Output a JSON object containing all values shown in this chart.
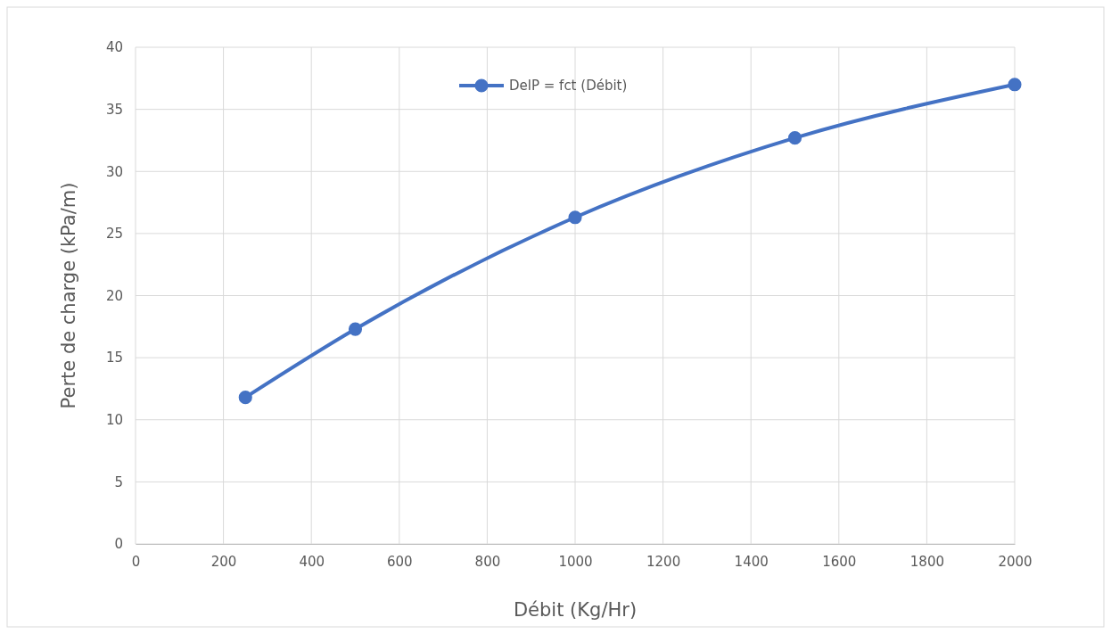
{
  "chart_data": {
    "type": "line",
    "xlabel": "Débit (Kg/Hr)",
    "ylabel": "Perte de charge (kPa/m)",
    "x": [
      250,
      500,
      1000,
      1500,
      2000
    ],
    "series": [
      {
        "name": "DelP = fct (Débit)",
        "color": "#4472c4",
        "values": [
          11.8,
          17.3,
          26.3,
          32.7,
          37.0
        ]
      }
    ],
    "xlim": [
      0,
      2000
    ],
    "xticks": [
      0,
      200,
      400,
      600,
      800,
      1000,
      1200,
      1400,
      1600,
      1800,
      2000
    ],
    "ylim": [
      0,
      40
    ],
    "yticks": [
      0,
      5,
      10,
      15,
      20,
      25,
      30,
      35,
      40
    ],
    "grid": true,
    "legend": "top",
    "marker": "circle",
    "line_style": "solid"
  }
}
